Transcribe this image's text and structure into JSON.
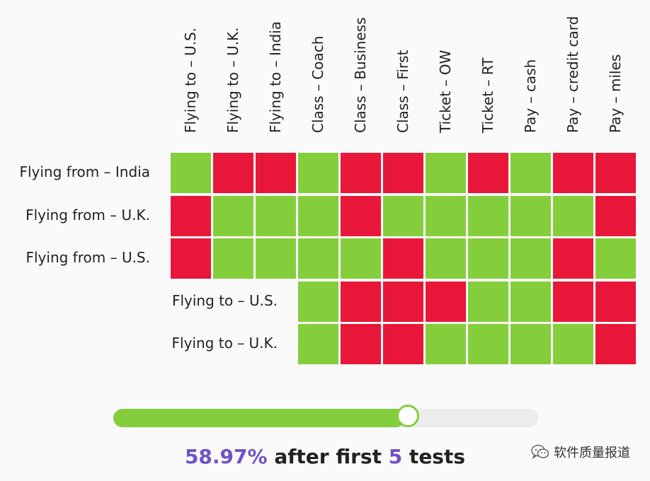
{
  "matrix": {
    "columns": [
      "Flying to – U.S.",
      "Flying to – U.K.",
      "Flying to – India",
      "Class – Coach",
      "Class – Business",
      "Class – First",
      "Ticket – OW",
      "Ticket – RT",
      "Pay – cash",
      "Pay – credit card",
      "Pay – miles"
    ],
    "rows": [
      {
        "label": "Flying from – India",
        "start_col": 0,
        "cells": [
          "pass",
          "fail",
          "fail",
          "pass",
          "fail",
          "fail",
          "pass",
          "fail",
          "pass",
          "fail",
          "fail"
        ]
      },
      {
        "label": "Flying from – U.K.",
        "start_col": 0,
        "cells": [
          "fail",
          "pass",
          "pass",
          "pass",
          "fail",
          "pass",
          "pass",
          "pass",
          "pass",
          "pass",
          "fail"
        ]
      },
      {
        "label": "Flying from – U.S.",
        "start_col": 0,
        "cells": [
          "fail",
          "pass",
          "pass",
          "pass",
          "pass",
          "fail",
          "pass",
          "pass",
          "pass",
          "fail",
          "pass"
        ]
      },
      {
        "label": "Flying to – U.S.",
        "start_col": 3,
        "cells": [
          "pass",
          "fail",
          "fail",
          "fail",
          "pass",
          "pass",
          "fail",
          "fail"
        ]
      },
      {
        "label": "Flying to – U.K.",
        "start_col": 3,
        "cells": [
          "pass",
          "fail",
          "fail",
          "pass",
          "pass",
          "pass",
          "pass",
          "fail"
        ]
      }
    ],
    "status_colors": {
      "pass": "#84ce3c",
      "fail": "#e8173a"
    }
  },
  "progress": {
    "fraction": 0.5897,
    "percent_text": "58.97%",
    "middle_text": " after first ",
    "tests_count": "5",
    "suffix_text": " tests",
    "accent_color": "#6f52c9"
  },
  "watermark": {
    "text": "软件质量报道",
    "icon": "wechat-icon"
  }
}
